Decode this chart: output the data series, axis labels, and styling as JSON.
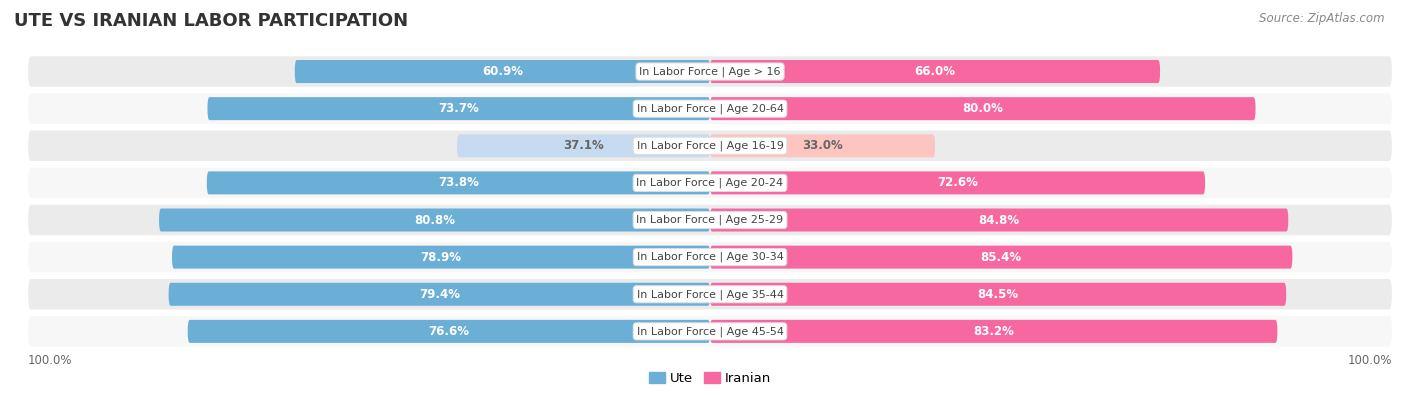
{
  "title": "UTE VS IRANIAN LABOR PARTICIPATION",
  "source": "Source: ZipAtlas.com",
  "categories": [
    "In Labor Force | Age > 16",
    "In Labor Force | Age 20-64",
    "In Labor Force | Age 16-19",
    "In Labor Force | Age 20-24",
    "In Labor Force | Age 25-29",
    "In Labor Force | Age 30-34",
    "In Labor Force | Age 35-44",
    "In Labor Force | Age 45-54"
  ],
  "ute_values": [
    60.9,
    73.7,
    37.1,
    73.8,
    80.8,
    78.9,
    79.4,
    76.6
  ],
  "iranian_values": [
    66.0,
    80.0,
    33.0,
    72.6,
    84.8,
    85.4,
    84.5,
    83.2
  ],
  "ute_color": "#6baed6",
  "ute_light_color": "#c6dbef",
  "iranian_color": "#f768a1",
  "iranian_light_color": "#fcc5c0",
  "label_color_white": "#ffffff",
  "label_color_dark": "#666666",
  "bg_color": "#ffffff",
  "row_bg_even": "#ebebeb",
  "row_bg_odd": "#f7f7f7",
  "legend_ute_label": "Ute",
  "legend_iranian_label": "Iranian",
  "x_axis_label_left": "100.0%",
  "x_axis_label_right": "100.0%",
  "title_fontsize": 13,
  "label_fontsize": 8.5,
  "category_fontsize": 8,
  "source_fontsize": 8.5
}
